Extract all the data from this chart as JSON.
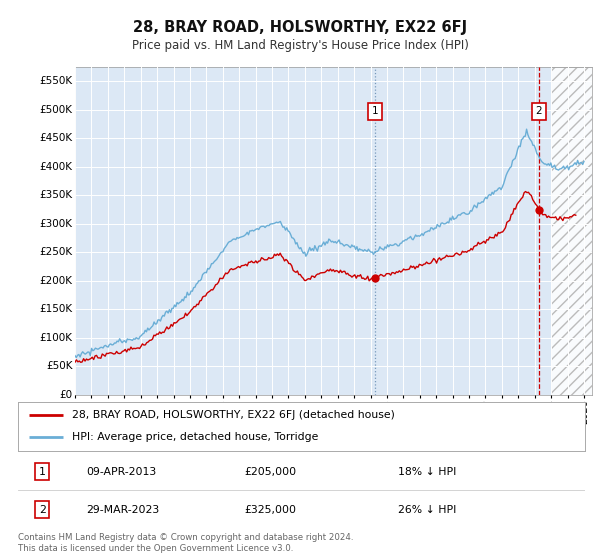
{
  "title": "28, BRAY ROAD, HOLSWORTHY, EX22 6FJ",
  "subtitle": "Price paid vs. HM Land Registry's House Price Index (HPI)",
  "ylim": [
    0,
    575000
  ],
  "yticks": [
    0,
    50000,
    100000,
    150000,
    200000,
    250000,
    300000,
    350000,
    400000,
    450000,
    500000,
    550000
  ],
  "ytick_labels": [
    "£0",
    "£50K",
    "£100K",
    "£150K",
    "£200K",
    "£250K",
    "£300K",
    "£350K",
    "£400K",
    "£450K",
    "£500K",
    "£550K"
  ],
  "hpi_color": "#6aaed6",
  "price_color": "#cc0000",
  "transaction1_date": 2013.27,
  "transaction1_price": 205000,
  "transaction2_date": 2023.24,
  "transaction2_price": 325000,
  "legend_line1": "28, BRAY ROAD, HOLSWORTHY, EX22 6FJ (detached house)",
  "legend_line2": "HPI: Average price, detached house, Torridge",
  "footer": "Contains HM Land Registry data © Crown copyright and database right 2024.\nThis data is licensed under the Open Government Licence v3.0.",
  "background_color": "#ffffff",
  "plot_bg_color": "#dce8f5",
  "grid_color": "#ffffff",
  "xmin": 1995,
  "xmax": 2026.5,
  "table_row1": [
    "1",
    "09-APR-2013",
    "£205,000",
    "18% ↓ HPI"
  ],
  "table_row2": [
    "2",
    "29-MAR-2023",
    "£325,000",
    "26% ↓ HPI"
  ]
}
